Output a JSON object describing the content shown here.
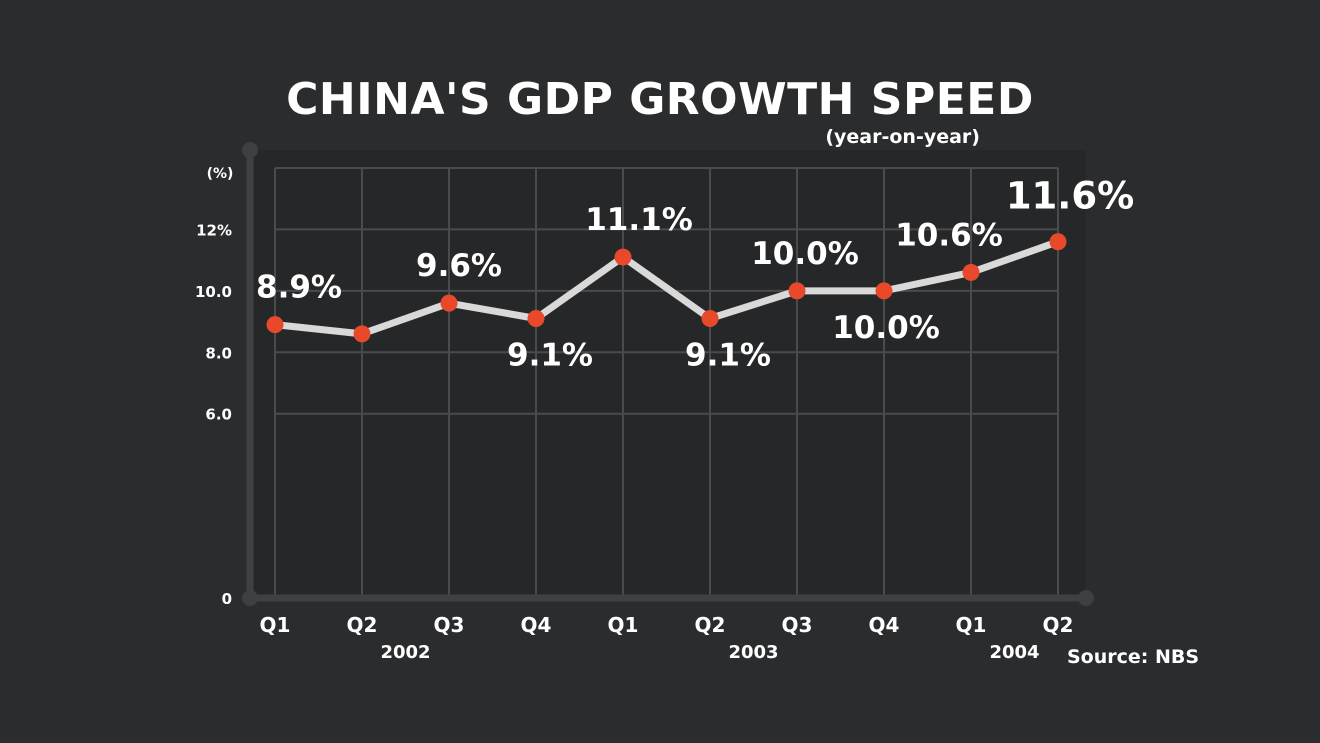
{
  "chart_data": {
    "type": "line",
    "title": "CHINA'S GDP GROWTH SPEED",
    "subtitle": "(year-on-year)",
    "ylabel": "(%)",
    "source": "Source: NBS",
    "categories": [
      "Q1",
      "Q2",
      "Q3",
      "Q4",
      "Q1",
      "Q2",
      "Q3",
      "Q4",
      "Q1",
      "Q2"
    ],
    "years": [
      {
        "label": "2002",
        "span": [
          0,
          3
        ]
      },
      {
        "label": "2003",
        "span": [
          4,
          7
        ]
      },
      {
        "label": "2004",
        "span": [
          8,
          9
        ]
      }
    ],
    "values": [
      8.9,
      8.6,
      9.6,
      9.1,
      11.1,
      9.1,
      10.0,
      10.0,
      10.6,
      11.6
    ],
    "data_labels": [
      "8.9%",
      "",
      "9.6%",
      "9.1%",
      "11.1%",
      "9.1%",
      "10.0%",
      "10.0%",
      "10.6%",
      "11.6%"
    ],
    "y_ticks": [
      {
        "value": 0,
        "label": "0"
      },
      {
        "value": 6,
        "label": "6.0"
      },
      {
        "value": 8,
        "label": "8.0"
      },
      {
        "value": 10,
        "label": "10.0"
      },
      {
        "value": 12,
        "label": "12%"
      }
    ],
    "ylim": [
      0,
      14
    ],
    "grid": true,
    "colors": {
      "background": "#2b2c2e",
      "plot_background": "#262729",
      "grid": "#4a4b4d",
      "axis": "#3f4042",
      "line": "#d9d9d9",
      "marker": "#e8492a"
    }
  }
}
